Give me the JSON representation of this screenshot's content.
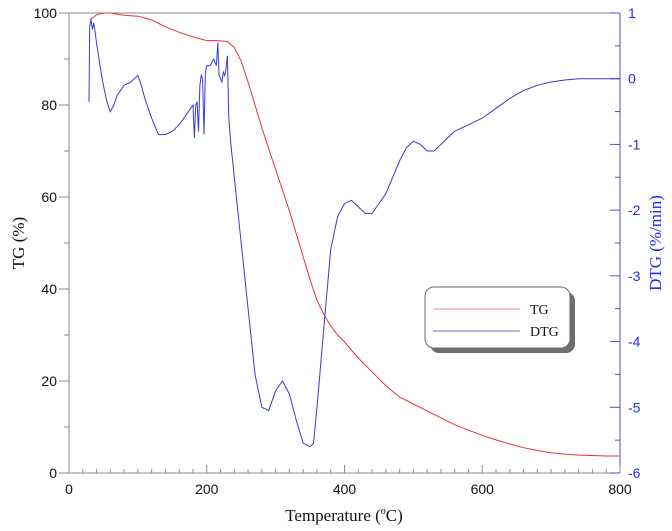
{
  "chart_data": {
    "type": "line",
    "title": "",
    "xlabel": "Temperature (°C)",
    "xlabel_parts": {
      "prefix": "Temperature (",
      "sup": "o",
      "suffix": "C)"
    },
    "ylabel": "TG (%)",
    "y2label": "DTG (%/min)",
    "xlim": [
      0,
      800
    ],
    "ylim": [
      0,
      100
    ],
    "y2lim": [
      -6,
      1
    ],
    "xticks": [
      "0",
      "200",
      "400",
      "600",
      "800"
    ],
    "yticks": [
      "0",
      "20",
      "40",
      "60",
      "80",
      "100"
    ],
    "y2ticks": [
      "-6",
      "-5",
      "-4",
      "-3",
      "-2",
      "-1",
      "0",
      "1"
    ],
    "grid": false,
    "legend_position": "center-right",
    "colors": {
      "TG": "#e8303a",
      "DTG": "#3a3ad0",
      "axis_left": "#7a7a7a",
      "axis_right": "#4848d0",
      "text_right": "#2a2ae0"
    },
    "series": [
      {
        "name": "TG",
        "axis": "left",
        "x": [
          30,
          40,
          50,
          60,
          80,
          100,
          120,
          140,
          160,
          180,
          200,
          215,
          230,
          240,
          250,
          260,
          270,
          280,
          290,
          300,
          310,
          320,
          330,
          340,
          350,
          360,
          370,
          380,
          390,
          400,
          420,
          440,
          460,
          480,
          500,
          520,
          540,
          560,
          580,
          600,
          620,
          640,
          660,
          680,
          700,
          720,
          740,
          760,
          780,
          800
        ],
        "values": [
          98.5,
          99.6,
          100,
          100,
          99.5,
          99.3,
          98.5,
          97,
          95.8,
          94.8,
          94,
          94,
          93.8,
          92.5,
          89.5,
          85,
          80,
          75,
          70.5,
          66,
          61.5,
          57,
          52,
          47,
          42,
          37.5,
          34.5,
          32,
          30,
          28.5,
          25,
          22,
          19,
          16.5,
          15,
          13.5,
          12,
          10.5,
          9.3,
          8.2,
          7.2,
          6.3,
          5.5,
          4.9,
          4.4,
          4.1,
          3.9,
          3.8,
          3.7,
          3.7
        ]
      },
      {
        "name": "DTG",
        "axis": "right",
        "x": [
          29,
          30,
          32,
          34,
          36,
          38,
          40,
          45,
          50,
          55,
          60,
          65,
          70,
          80,
          90,
          100,
          105,
          110,
          120,
          130,
          140,
          150,
          160,
          170,
          180,
          182,
          184,
          186,
          188,
          190,
          192,
          194,
          196,
          198,
          200,
          205,
          210,
          214,
          216,
          218,
          220,
          222,
          224,
          226,
          228,
          230,
          232,
          235,
          240,
          250,
          260,
          270,
          280,
          290,
          300,
          310,
          320,
          330,
          340,
          350,
          355,
          360,
          370,
          380,
          390,
          400,
          410,
          420,
          430,
          440,
          450,
          460,
          470,
          480,
          490,
          500,
          510,
          520,
          530,
          540,
          560,
          580,
          600,
          620,
          640,
          660,
          680,
          700,
          720,
          740,
          760,
          780,
          800
        ],
        "values": [
          -0.35,
          0.8,
          0.9,
          0.75,
          0.85,
          0.7,
          0.55,
          0.2,
          -0.1,
          -0.35,
          -0.5,
          -0.4,
          -0.25,
          -0.1,
          -0.05,
          0.05,
          -0.1,
          -0.3,
          -0.6,
          -0.85,
          -0.85,
          -0.8,
          -0.7,
          -0.55,
          -0.4,
          -0.9,
          -0.4,
          -0.35,
          -0.8,
          -0.1,
          0.05,
          0.0,
          -0.85,
          0.1,
          0.2,
          0.2,
          0.3,
          0.2,
          0.55,
          0.05,
          0.0,
          -0.05,
          0.1,
          0.05,
          0.15,
          0.35,
          -0.6,
          -1.0,
          -1.5,
          -2.5,
          -3.5,
          -4.5,
          -5.0,
          -5.05,
          -4.75,
          -4.6,
          -4.8,
          -5.2,
          -5.55,
          -5.6,
          -5.55,
          -5.0,
          -3.8,
          -2.6,
          -2.1,
          -1.9,
          -1.85,
          -1.95,
          -2.05,
          -2.05,
          -1.9,
          -1.75,
          -1.5,
          -1.25,
          -1.05,
          -0.95,
          -1.0,
          -1.1,
          -1.1,
          -1.0,
          -0.8,
          -0.7,
          -0.6,
          -0.45,
          -0.3,
          -0.18,
          -0.1,
          -0.05,
          -0.02,
          0.0,
          0.0,
          0.0,
          0.0
        ]
      }
    ],
    "legend": [
      {
        "label": "TG",
        "color": "#f08a8a"
      },
      {
        "label": "DTG",
        "color": "#7070d0"
      }
    ]
  }
}
